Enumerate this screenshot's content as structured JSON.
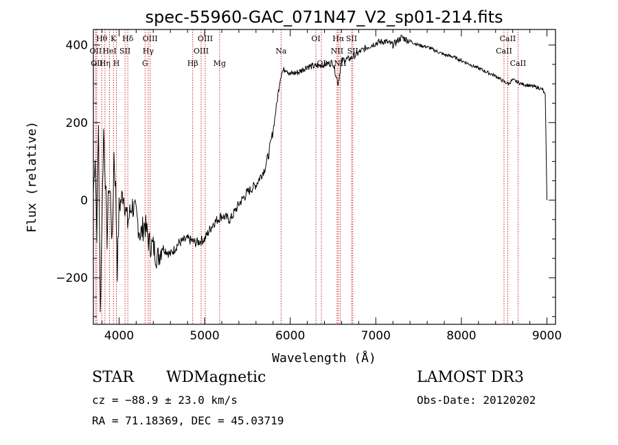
{
  "chart_data": {
    "type": "line",
    "title": "spec-55960-GAC_071N47_V2_sp01-214.fits",
    "xlabel": "Wavelength (Å)",
    "ylabel": "Flux (relative)",
    "xlim": [
      3700,
      9100
    ],
    "ylim": [
      -320,
      440
    ],
    "xticks": [
      4000,
      5000,
      6000,
      7000,
      8000,
      9000
    ],
    "xtick_labels": [
      "4000",
      "5000",
      "6000",
      "7000",
      "8000",
      "9000"
    ],
    "yticks": [
      -200,
      0,
      200,
      400
    ],
    "ytick_labels": [
      "−200",
      "0",
      "200",
      "400"
    ],
    "series": [
      {
        "name": "flux",
        "x": [
          3700,
          3720,
          3740,
          3760,
          3780,
          3800,
          3820,
          3840,
          3860,
          3880,
          3900,
          3920,
          3940,
          3960,
          3980,
          4000,
          4050,
          4100,
          4150,
          4200,
          4250,
          4300,
          4350,
          4400,
          4450,
          4500,
          4600,
          4700,
          4800,
          4900,
          5000,
          5100,
          5200,
          5300,
          5400,
          5500,
          5600,
          5700,
          5750,
          5800,
          5850,
          5880,
          5900,
          5950,
          6000,
          6100,
          6200,
          6300,
          6400,
          6500,
          6560,
          6600,
          6700,
          6800,
          6900,
          7000,
          7100,
          7200,
          7300,
          7400,
          7500,
          7600,
          7700,
          7800,
          7900,
          8000,
          8100,
          8200,
          8300,
          8400,
          8500,
          8550,
          8600,
          8700,
          8800,
          8900,
          8950,
          8980,
          9000
        ],
        "y": [
          20,
          120,
          -80,
          200,
          -300,
          -50,
          180,
          60,
          -100,
          40,
          10,
          -120,
          120,
          30,
          -180,
          -20,
          20,
          -60,
          -10,
          -40,
          -90,
          -60,
          -110,
          -120,
          -150,
          -120,
          -140,
          -110,
          -100,
          -110,
          -100,
          -60,
          -40,
          -50,
          -10,
          20,
          40,
          80,
          120,
          180,
          260,
          310,
          330,
          340,
          325,
          330,
          345,
          345,
          350,
          355,
          300,
          360,
          365,
          380,
          395,
          405,
          410,
          400,
          420,
          410,
          400,
          395,
          385,
          375,
          370,
          360,
          350,
          340,
          330,
          320,
          305,
          300,
          310,
          300,
          295,
          290,
          285,
          270,
          0
        ]
      }
    ],
    "line_markers": [
      {
        "label": "Hθ",
        "x": 3798,
        "row": 0
      },
      {
        "label": "K",
        "x": 3934,
        "row": 0
      },
      {
        "label": "Hδ",
        "x": 4102,
        "row": 0
      },
      {
        "label": "OII",
        "x": 3727,
        "row": 1
      },
      {
        "label": "HeI",
        "x": 3889,
        "row": 1
      },
      {
        "label": "SII",
        "x": 4070,
        "row": 1
      },
      {
        "label": "OII",
        "x": 3740,
        "row": 2
      },
      {
        "label": "Hη",
        "x": 3835,
        "row": 2
      },
      {
        "label": "H",
        "x": 3969,
        "row": 2
      },
      {
        "label": "OIII",
        "x": 4363,
        "row": 0
      },
      {
        "label": "Hγ",
        "x": 4341,
        "row": 1
      },
      {
        "label": "G",
        "x": 4304,
        "row": 2
      },
      {
        "label": "OIII",
        "x": 5007,
        "row": 0
      },
      {
        "label": "OIII",
        "x": 4959,
        "row": 1
      },
      {
        "label": "Hβ",
        "x": 4861,
        "row": 2
      },
      {
        "label": "Mg",
        "x": 5175,
        "row": 2
      },
      {
        "label": "Na",
        "x": 5893,
        "row": 1
      },
      {
        "label": "OI",
        "x": 6300,
        "row": 0
      },
      {
        "label": "OI",
        "x": 6364,
        "row": 2
      },
      {
        "label": "Hα",
        "x": 6563,
        "row": 0
      },
      {
        "label": "SII",
        "x": 6717,
        "row": 0
      },
      {
        "label": "NII",
        "x": 6548,
        "row": 1
      },
      {
        "label": "SII",
        "x": 6731,
        "row": 1
      },
      {
        "label": "NII",
        "x": 6584,
        "row": 2
      },
      {
        "label": "CaII",
        "x": 8542,
        "row": 0
      },
      {
        "label": "CaII",
        "x": 8498,
        "row": 1
      },
      {
        "label": "CaII",
        "x": 8662,
        "row": 2
      }
    ]
  },
  "info": {
    "class": "STAR",
    "subclass": "WDMagnetic",
    "survey": "LAMOST DR3",
    "cz": "cz = −88.9 ± 23.0 km/s",
    "obs_date": "Obs-Date: 20120202",
    "radec": "RA =  71.18369, DEC =  45.03719"
  }
}
